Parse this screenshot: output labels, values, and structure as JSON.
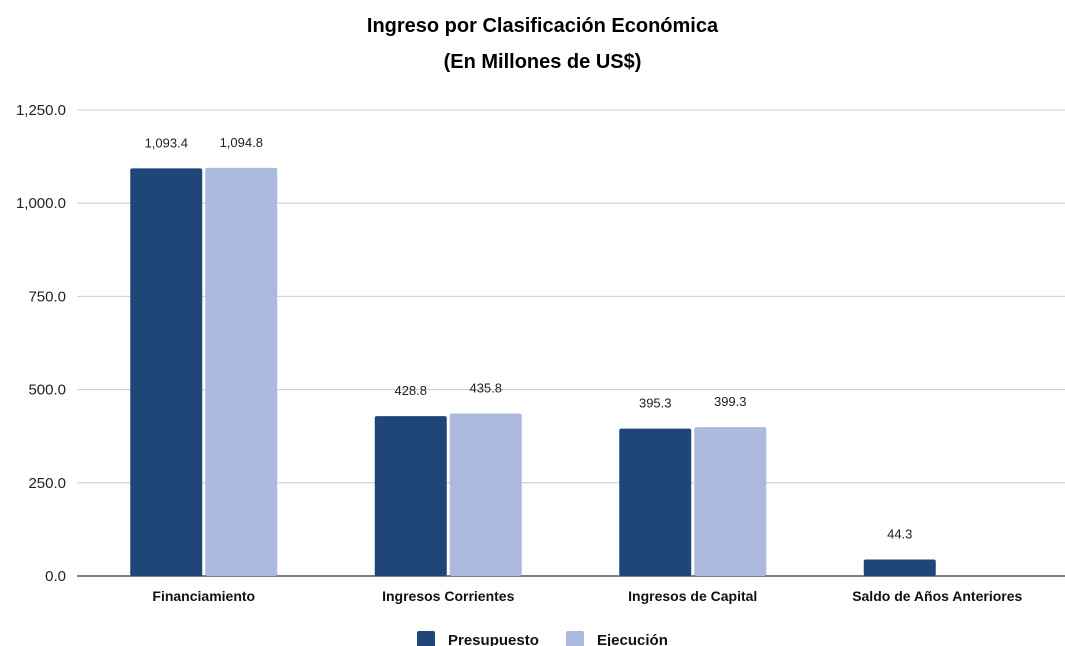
{
  "chart_data": {
    "type": "bar",
    "title": "Ingreso por Clasificación Económica",
    "subtitle": "(En Millones de US$)",
    "categories": [
      "Financiamiento",
      "Ingresos Corrientes",
      "Ingresos de Capital",
      "Saldo de Años Anteriores"
    ],
    "series": [
      {
        "name": "Presupuesto",
        "values": [
          1093.4,
          428.8,
          395.3,
          44.3
        ],
        "labels": [
          "1,093.4",
          "428.8",
          "395.3",
          "44.3"
        ],
        "color": "#1f4579"
      },
      {
        "name": "Ejecución",
        "values": [
          1094.8,
          435.8,
          399.3,
          null
        ],
        "labels": [
          "1,094.8",
          "435.8",
          "399.3",
          ""
        ],
        "color": "#aab9dc"
      }
    ],
    "yticks": [
      "0.0",
      "250.0",
      "500.0",
      "750.0",
      "1,000.0",
      "1,250.0"
    ],
    "ylim": [
      0,
      1250
    ],
    "grid": true,
    "legend_position": "bottom"
  }
}
